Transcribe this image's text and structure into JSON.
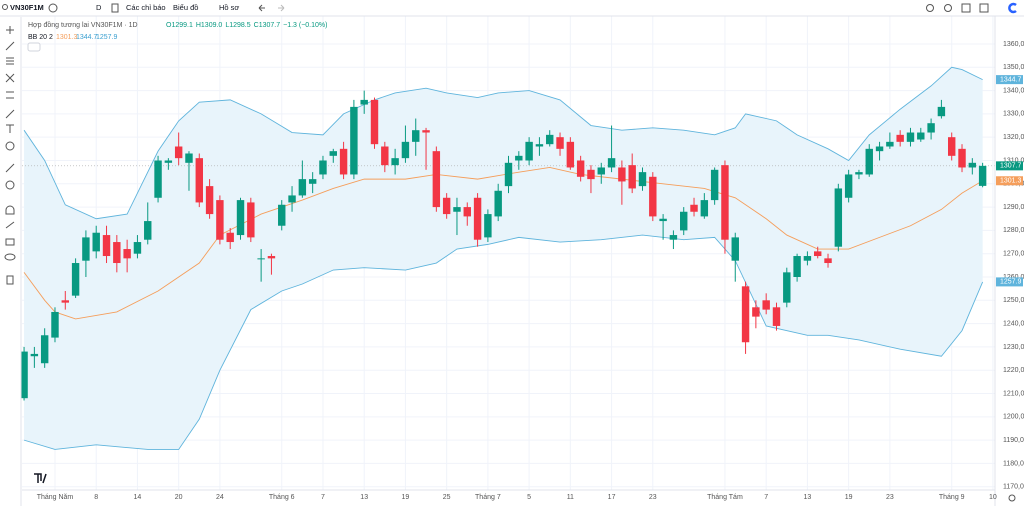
{
  "toolbar": {
    "symbol": "VN30F1M",
    "interval": "D",
    "indicators": "Các chỉ báo",
    "chart": "Biểu đồ",
    "profile": "Hồ sơ"
  },
  "legend": {
    "title": "Hợp đồng tương lai VN30F1M · 1D",
    "ohlc": [
      "O1299.1",
      "H1309.0",
      "L1298.5",
      "C1307.7",
      "−1.3 (−0.10%)"
    ],
    "bb": "BB 20 2"
  },
  "chart_data": {
    "type": "candlestick",
    "up_color": "#089981",
    "down_color": "#f23645",
    "open": [
      1208,
      1226,
      1223,
      1234,
      1250,
      1252,
      1267,
      1271,
      1278,
      1275,
      1272,
      1270,
      1276,
      1294,
      1309,
      1316,
      1309,
      1311,
      1299,
      1293,
      1279,
      1278,
      1292,
      1268,
      1269,
      1282,
      1292,
      1295,
      1300,
      1304,
      1312,
      1315,
      1304,
      1334,
      1336,
      1316,
      1308,
      1311,
      1318,
      1323,
      1314,
      1294,
      1288,
      1290,
      1294,
      1277,
      1286,
      1299,
      1310,
      1310,
      1316,
      1317,
      1320,
      1318,
      1310,
      1306,
      1304,
      1307,
      1307,
      1308,
      1299,
      1303,
      1284,
      1276,
      1280,
      1291,
      1286,
      1293,
      1308,
      1267,
      1256,
      1247,
      1250,
      1247,
      1249,
      1260,
      1267,
      1271,
      1268,
      1273,
      1294,
      1304,
      1304,
      1314,
      1316,
      1321,
      1318,
      1319,
      1322,
      1329,
      1320,
      1315,
      1307,
      1299.1
    ],
    "high": [
      1230,
      1230,
      1238,
      1247,
      1254,
      1268,
      1280,
      1282,
      1282,
      1278,
      1276,
      1278,
      1292,
      1312,
      1311,
      1322,
      1314,
      1313,
      1302,
      1295,
      1281,
      1294,
      1294,
      1272,
      1270,
      1293,
      1299,
      1310,
      1305,
      1312,
      1315,
      1318,
      1336,
      1340,
      1337,
      1318,
      1315,
      1325,
      1328,
      1324,
      1316,
      1296,
      1294,
      1292,
      1296,
      1289,
      1300,
      1312,
      1314,
      1320,
      1320,
      1323,
      1322,
      1320,
      1312,
      1308,
      1309,
      1325,
      1310,
      1313,
      1307,
      1305,
      1287,
      1280,
      1290,
      1294,
      1296,
      1307,
      1310,
      1279,
      1258,
      1250,
      1253,
      1249,
      1264,
      1270,
      1271,
      1273,
      1270,
      1300,
      1306,
      1306,
      1317,
      1318,
      1322,
      1323,
      1324,
      1324,
      1328,
      1336,
      1322,
      1317,
      1311,
      1309
    ],
    "low": [
      1207,
      1221,
      1221,
      1232,
      1246,
      1251,
      1260,
      1268,
      1266,
      1262,
      1262,
      1268,
      1274,
      1292,
      1306,
      1308,
      1297,
      1290,
      1285,
      1274,
      1272,
      1276,
      1275,
      1258,
      1261,
      1280,
      1288,
      1294,
      1296,
      1302,
      1309,
      1302,
      1302,
      1330,
      1315,
      1305,
      1304,
      1309,
      1312,
      1306,
      1288,
      1285,
      1278,
      1282,
      1273,
      1275,
      1284,
      1296,
      1306,
      1308,
      1312,
      1316,
      1312,
      1306,
      1301,
      1296,
      1300,
      1305,
      1291,
      1296,
      1297,
      1284,
      1276,
      1272,
      1278,
      1286,
      1285,
      1291,
      1270,
      1258,
      1227,
      1238,
      1244,
      1237,
      1247,
      1258,
      1265,
      1268,
      1264,
      1271,
      1292,
      1302,
      1303,
      1310,
      1315,
      1316,
      1316,
      1318,
      1319,
      1328,
      1310,
      1305,
      1304,
      1298.5
    ],
    "close": [
      1228,
      1227,
      1235,
      1245,
      1249,
      1266,
      1277,
      1279,
      1269,
      1266,
      1268,
      1275,
      1284,
      1310,
      1310,
      1311,
      1313,
      1292,
      1287,
      1276,
      1275,
      1293,
      1277,
      1268,
      1268,
      1291,
      1295,
      1302,
      1302,
      1310,
      1314,
      1304,
      1333,
      1336,
      1317,
      1308,
      1311,
      1318,
      1323,
      1322,
      1290,
      1287,
      1290,
      1286,
      1276,
      1287,
      1297,
      1309,
      1312,
      1318,
      1317,
      1321,
      1315,
      1307,
      1303,
      1302,
      1307,
      1311,
      1301,
      1298,
      1305,
      1286,
      1285,
      1278,
      1288,
      1288,
      1293,
      1306,
      1276,
      1277,
      1232,
      1243,
      1246,
      1239,
      1262,
      1269,
      1269,
      1269,
      1266,
      1298,
      1304,
      1305,
      1315,
      1316,
      1318,
      1318,
      1322,
      1322,
      1326,
      1333,
      1312,
      1307,
      1309,
      1307.7
    ],
    "bb_color": "#5fb4dc",
    "bb_middle_color": "#f59e5b",
    "bb_fill": "#e8f4fb",
    "bb_upper": {
      "x": [
        0,
        2,
        4,
        7,
        10,
        13,
        15,
        17,
        20,
        23,
        26,
        29,
        31,
        34,
        36,
        39,
        41,
        44,
        46,
        49,
        52,
        55,
        58,
        61,
        64,
        67,
        69,
        70,
        73,
        75,
        78,
        80,
        82,
        85,
        88,
        90,
        91,
        93
      ],
      "values": [
        1323,
        1310,
        1291,
        1285,
        1287,
        1314,
        1327,
        1335,
        1336,
        1330,
        1322,
        1321,
        1330,
        1336,
        1339,
        1341,
        1339,
        1337,
        1339,
        1340,
        1336,
        1325,
        1323,
        1324,
        1323,
        1321,
        1324,
        1330,
        1327,
        1321,
        1315,
        1310,
        1321,
        1332,
        1342,
        1350,
        1349,
        1344.7
      ]
    },
    "bb_middle": {
      "x": [
        0,
        2,
        3,
        5,
        9,
        13,
        17,
        19,
        23,
        27,
        30,
        33,
        37,
        40,
        44,
        48,
        51,
        54,
        58,
        62,
        66,
        69,
        72,
        74,
        77,
        80,
        83,
        86,
        89,
        91,
        93
      ],
      "values": [
        1262,
        1250,
        1245,
        1242,
        1245,
        1254,
        1266,
        1278,
        1287,
        1293,
        1298,
        1302,
        1302,
        1304,
        1302,
        1305,
        1307,
        1304,
        1302,
        1300,
        1298,
        1294,
        1285,
        1278,
        1272,
        1272,
        1277,
        1282,
        1289,
        1296,
        1301.3
      ]
    },
    "bb_lower": {
      "x": [
        0,
        3,
        7,
        12,
        15,
        17,
        19,
        22,
        25,
        27,
        30,
        33,
        37,
        40,
        42,
        45,
        48,
        52,
        56,
        60,
        64,
        67,
        69,
        72,
        76,
        78,
        81,
        85,
        89,
        91,
        93
      ],
      "values": [
        1190,
        1186,
        1188,
        1186,
        1186,
        1199,
        1220,
        1246,
        1254,
        1257,
        1263,
        1264,
        1263,
        1266,
        1272,
        1274,
        1277,
        1275,
        1276,
        1278,
        1276,
        1277,
        1267,
        1239,
        1235,
        1235,
        1233,
        1229,
        1226,
        1237,
        1257.9
      ]
    },
    "xlim": [
      -0.2,
      94.2
    ],
    "ylim": [
      1168.6,
      1372
    ],
    "xticks": [
      {
        "value": 3,
        "label": "Tháng Năm"
      },
      {
        "value": 7,
        "label": "8"
      },
      {
        "value": 11,
        "label": "14"
      },
      {
        "value": 15,
        "label": "20"
      },
      {
        "value": 19,
        "label": "24"
      },
      {
        "value": 25,
        "label": "Tháng 6"
      },
      {
        "value": 29,
        "label": "7"
      },
      {
        "value": 33,
        "label": "13"
      },
      {
        "value": 37,
        "label": "19"
      },
      {
        "value": 41,
        "label": "25"
      },
      {
        "value": 45,
        "label": "Tháng 7"
      },
      {
        "value": 49,
        "label": "5"
      },
      {
        "value": 53,
        "label": "11"
      },
      {
        "value": 57,
        "label": "17"
      },
      {
        "value": 61,
        "label": "23"
      },
      {
        "value": 68,
        "label": "Tháng Tám"
      },
      {
        "value": 72,
        "label": "7"
      },
      {
        "value": 76,
        "label": "13"
      },
      {
        "value": 80,
        "label": "19"
      },
      {
        "value": 84,
        "label": "23"
      },
      {
        "value": 90,
        "label": "Tháng 9"
      },
      {
        "value": 94,
        "label": "10"
      }
    ],
    "yticks": [
      {
        "value": 1360,
        "label": "1360,0"
      },
      {
        "value": 1350,
        "label": "1350,0"
      },
      {
        "value": 1340,
        "label": "1340,0"
      },
      {
        "value": 1330,
        "label": "1330,0"
      },
      {
        "value": 1320,
        "label": "1320,0"
      },
      {
        "value": 1310,
        "label": "1310,0"
      },
      {
        "value": 1300,
        "label": "1300,0"
      },
      {
        "value": 1290,
        "label": "1290,0"
      },
      {
        "value": 1280,
        "label": "1280,0"
      },
      {
        "value": 1270,
        "label": "1270,0"
      },
      {
        "value": 1260,
        "label": "1260,0"
      },
      {
        "value": 1250,
        "label": "1250,0"
      },
      {
        "value": 1240,
        "label": "1240,0"
      },
      {
        "value": 1230,
        "label": "1230,0"
      },
      {
        "value": 1220,
        "label": "1220,0"
      },
      {
        "value": 1210,
        "label": "1210,0"
      },
      {
        "value": 1200,
        "label": "1200,0"
      },
      {
        "value": 1190,
        "label": "1190,0"
      },
      {
        "value": 1180,
        "label": "1180,0"
      },
      {
        "value": 1170,
        "label": "1170,0"
      }
    ],
    "grid": true
  }
}
